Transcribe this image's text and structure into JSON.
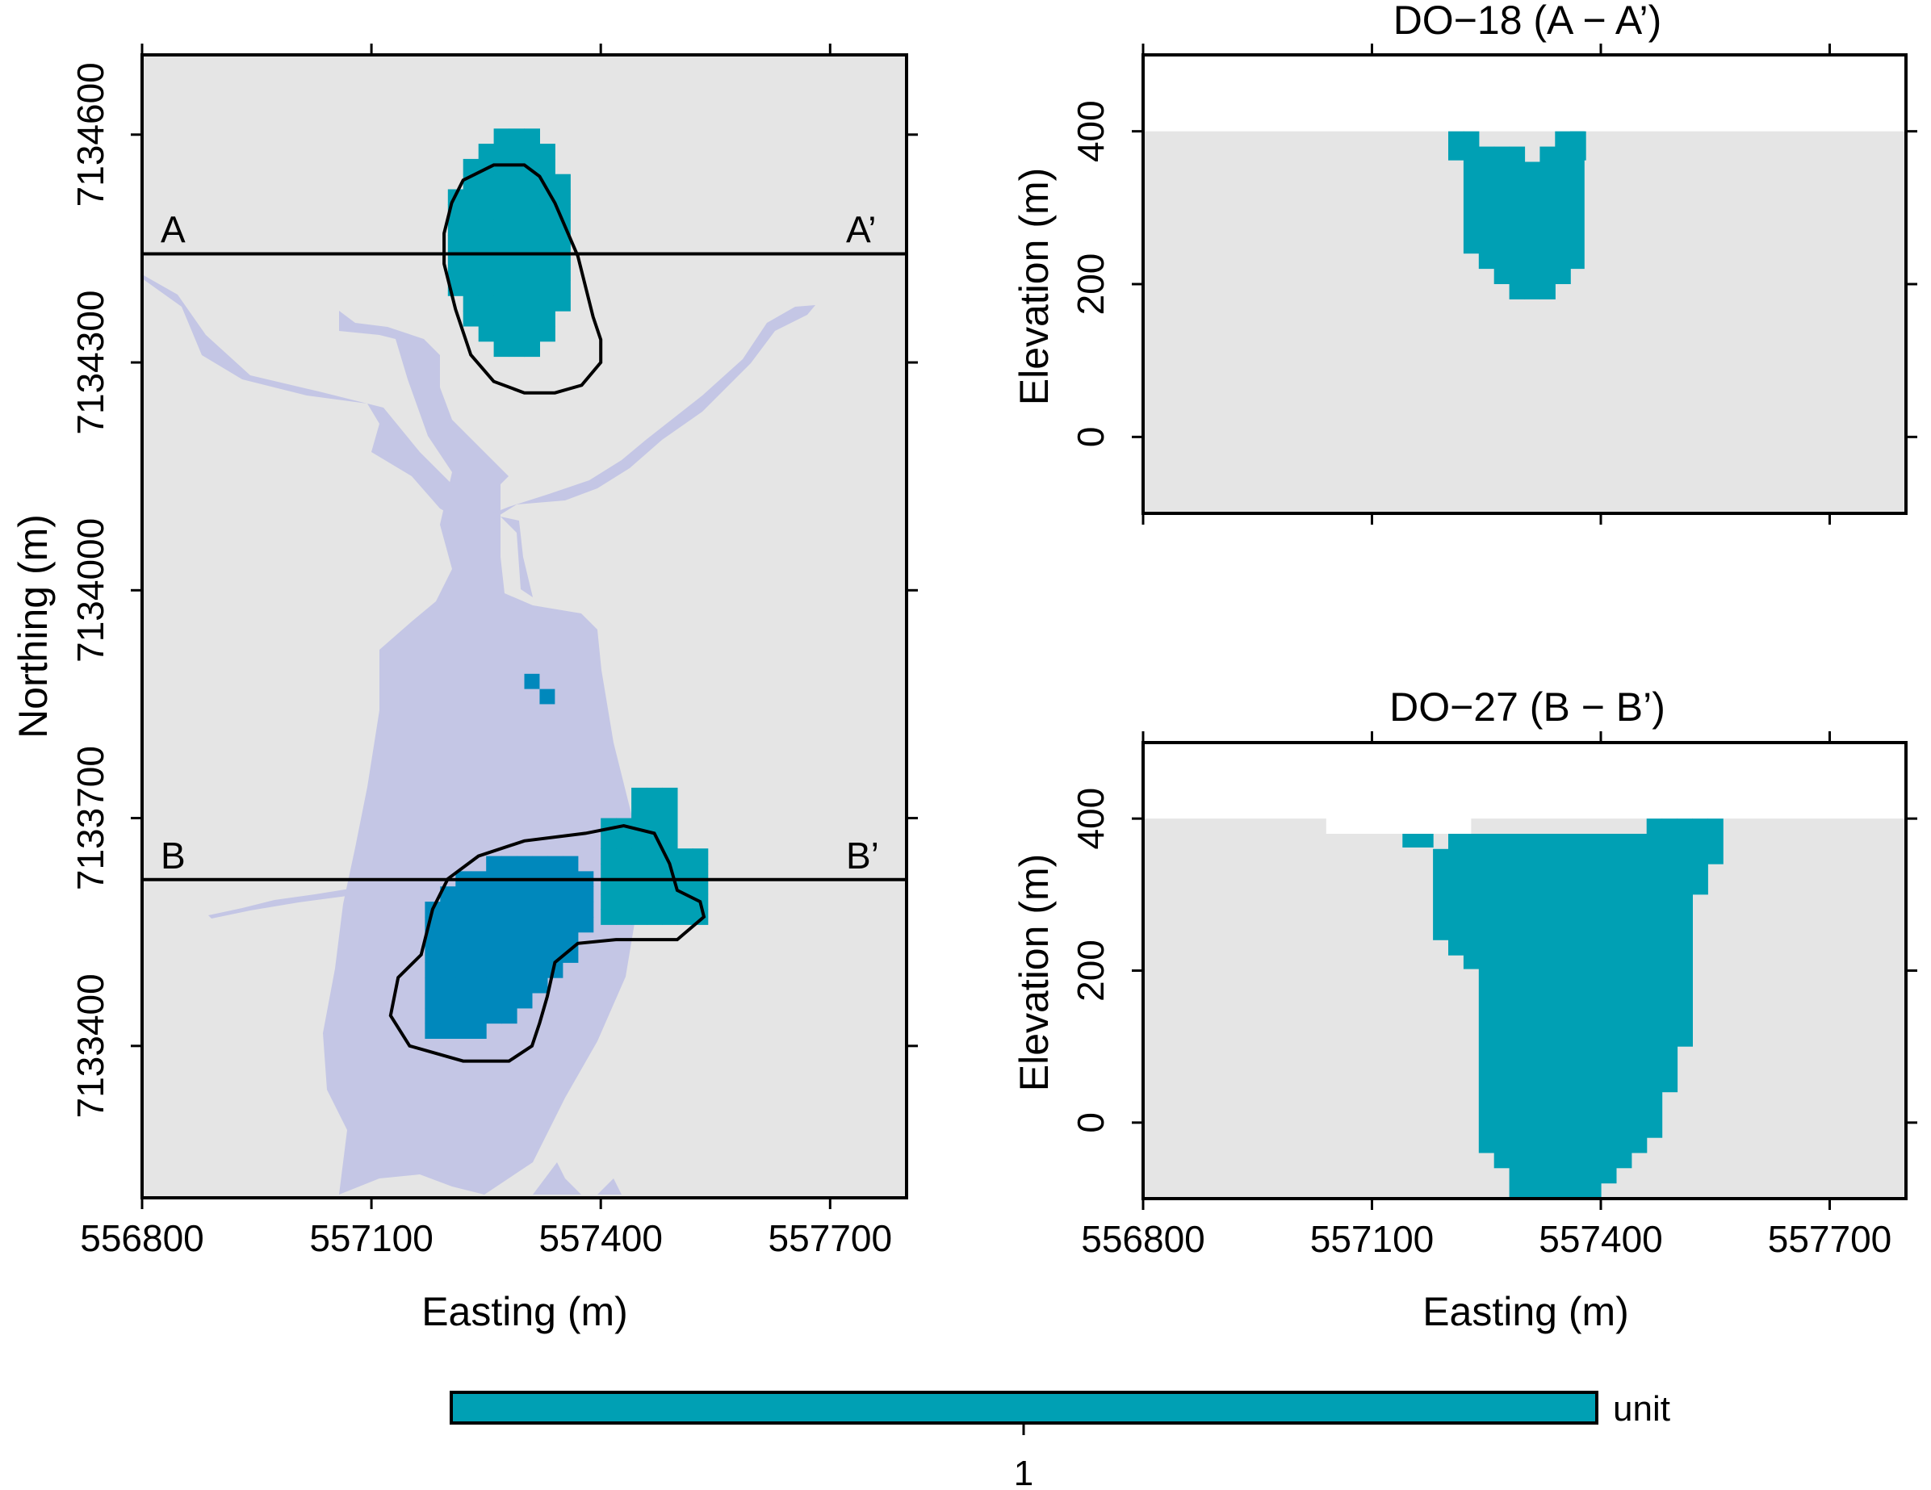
{
  "colors": {
    "panel_bg": "#e5e5e5",
    "water": "#c4c6e5",
    "unit": "#00a0b4",
    "unit_dark": "#0088bc",
    "outline": "#000000"
  },
  "legend": {
    "label": "unit",
    "tick": "1",
    "color": "#00a0b4"
  },
  "chart_data": [
    {
      "type": "heatmap",
      "panel": "plan-map",
      "title": "",
      "xlabel": "Easting (m)",
      "ylabel": "Northing (m)",
      "xlim": [
        556800,
        557800
      ],
      "ylim": [
        7133200,
        7134705
      ],
      "xticks": [
        556800,
        557100,
        557400,
        557700
      ],
      "yticks": [
        7133400,
        7133700,
        7134000,
        7134300,
        7134600
      ],
      "grid": false,
      "section_lines": [
        {
          "y": 7134443,
          "start_label": "A",
          "end_label": "A’"
        },
        {
          "y": 7133619,
          "start_label": "B",
          "end_label": "B’"
        }
      ],
      "north_body": {
        "cells_x": [
          557180,
          557388
        ],
        "cells_y": [
          7134308,
          7134598
        ],
        "outline": [
          [
            557195,
            7134470
          ],
          [
            557205,
            7134510
          ],
          [
            557220,
            7134540
          ],
          [
            557260,
            7134560
          ],
          [
            557300,
            7134560
          ],
          [
            557320,
            7134545
          ],
          [
            557340,
            7134510
          ],
          [
            557370,
            7134440
          ],
          [
            557390,
            7134360
          ],
          [
            557400,
            7134330
          ],
          [
            557400,
            7134300
          ],
          [
            557375,
            7134270
          ],
          [
            557340,
            7134260
          ],
          [
            557300,
            7134260
          ],
          [
            557260,
            7134275
          ],
          [
            557230,
            7134310
          ],
          [
            557210,
            7134370
          ],
          [
            557195,
            7134430
          ]
        ]
      },
      "south_body": {
        "cells_x": [
          557170,
          557400
        ],
        "cells_y": [
          7133410,
          7133680
        ],
        "east_cells_x": [
          557400,
          557530
        ],
        "east_cells_y": [
          7133560,
          7133730
        ],
        "outline": [
          [
            557165,
            7133520
          ],
          [
            557180,
            7133580
          ],
          [
            557200,
            7133620
          ],
          [
            557240,
            7133650
          ],
          [
            557300,
            7133670
          ],
          [
            557380,
            7133680
          ],
          [
            557430,
            7133690
          ],
          [
            557470,
            7133680
          ],
          [
            557490,
            7133640
          ],
          [
            557500,
            7133605
          ],
          [
            557530,
            7133590
          ],
          [
            557535,
            7133570
          ],
          [
            557500,
            7133540
          ],
          [
            557420,
            7133540
          ],
          [
            557370,
            7133535
          ],
          [
            557340,
            7133510
          ],
          [
            557330,
            7133465
          ],
          [
            557320,
            7133430
          ],
          [
            557310,
            7133400
          ],
          [
            557280,
            7133380
          ],
          [
            557220,
            7133380
          ],
          [
            557150,
            7133400
          ],
          [
            557125,
            7133440
          ],
          [
            557135,
            7133490
          ]
        ]
      }
    },
    {
      "type": "heatmap",
      "panel": "section-A",
      "title": "DO−18 (A − A’)",
      "xlabel": "",
      "ylabel": "Elevation (m)",
      "xlim": [
        556800,
        557800
      ],
      "ylim": [
        -100,
        500
      ],
      "xticks": [
        556800,
        557100,
        557400,
        557700
      ],
      "yticks": [
        0,
        200,
        400
      ],
      "ground_elevation": 400,
      "body_columns": [
        {
          "x": [
            557200,
            557220
          ],
          "top": 400,
          "bottom": 362
        },
        {
          "x": [
            557220,
            557240
          ],
          "top": 400,
          "bottom": 240
        },
        {
          "x": [
            557240,
            557260
          ],
          "top": 380,
          "bottom": 220
        },
        {
          "x": [
            557260,
            557280
          ],
          "top": 380,
          "bottom": 200
        },
        {
          "x": [
            557280,
            557300
          ],
          "top": 380,
          "bottom": 180
        },
        {
          "x": [
            557300,
            557320
          ],
          "top": 360,
          "bottom": 180
        },
        {
          "x": [
            557320,
            557340
          ],
          "top": 380,
          "bottom": 180
        },
        {
          "x": [
            557340,
            557360
          ],
          "top": 400,
          "bottom": 200
        },
        {
          "x": [
            557360,
            557378
          ],
          "top": 400,
          "bottom": 220
        },
        {
          "x": [
            557360,
            557380
          ],
          "top": 400,
          "bottom": 362
        }
      ]
    },
    {
      "type": "heatmap",
      "panel": "section-B",
      "title": "DO−27 (B − B’)",
      "xlabel": "Easting (m)",
      "ylabel": "Elevation (m)",
      "xlim": [
        556800,
        557800
      ],
      "ylim": [
        -100,
        500
      ],
      "xticks": [
        556800,
        557100,
        557400,
        557700
      ],
      "yticks": [
        0,
        200,
        400
      ],
      "ground_elevation": 400,
      "ground_dip": {
        "x": [
          557040,
          557230
        ],
        "elevation": 380
      },
      "body_columns": [
        {
          "x": [
            557140,
            557180
          ],
          "top": 380,
          "bottom": 362
        },
        {
          "x": [
            557220,
            557240
          ],
          "top": 380,
          "bottom": 202
        },
        {
          "x": [
            557240,
            557260
          ],
          "top": 380,
          "bottom": -40
        },
        {
          "x": [
            557260,
            557280
          ],
          "top": 380,
          "bottom": -60
        },
        {
          "x": [
            557280,
            557300
          ],
          "top": 380,
          "bottom": -100
        },
        {
          "x": [
            557300,
            557320
          ],
          "top": 380,
          "bottom": -100
        },
        {
          "x": [
            557320,
            557340
          ],
          "top": 380,
          "bottom": -100
        },
        {
          "x": [
            557340,
            557360
          ],
          "top": 380,
          "bottom": -100
        },
        {
          "x": [
            557360,
            557380
          ],
          "top": 380,
          "bottom": -100
        },
        {
          "x": [
            557380,
            557400
          ],
          "top": 380,
          "bottom": -100
        },
        {
          "x": [
            557400,
            557420
          ],
          "top": 380,
          "bottom": -80
        },
        {
          "x": [
            557420,
            557440
          ],
          "top": 380,
          "bottom": -60
        },
        {
          "x": [
            557440,
            557460
          ],
          "top": 380,
          "bottom": -40
        },
        {
          "x": [
            557460,
            557480
          ],
          "top": 400,
          "bottom": -20
        },
        {
          "x": [
            557480,
            557500
          ],
          "top": 400,
          "bottom": 40
        },
        {
          "x": [
            557500,
            557520
          ],
          "top": 400,
          "bottom": 100
        },
        {
          "x": [
            557520,
            557540
          ],
          "top": 400,
          "bottom": 300
        },
        {
          "x": [
            557540,
            557560
          ],
          "top": 400,
          "bottom": 340
        },
        {
          "x": [
            557200,
            557220
          ],
          "top": 380,
          "bottom": 220
        },
        {
          "x": [
            557180,
            557200
          ],
          "top": 360,
          "bottom": 240
        }
      ]
    }
  ]
}
